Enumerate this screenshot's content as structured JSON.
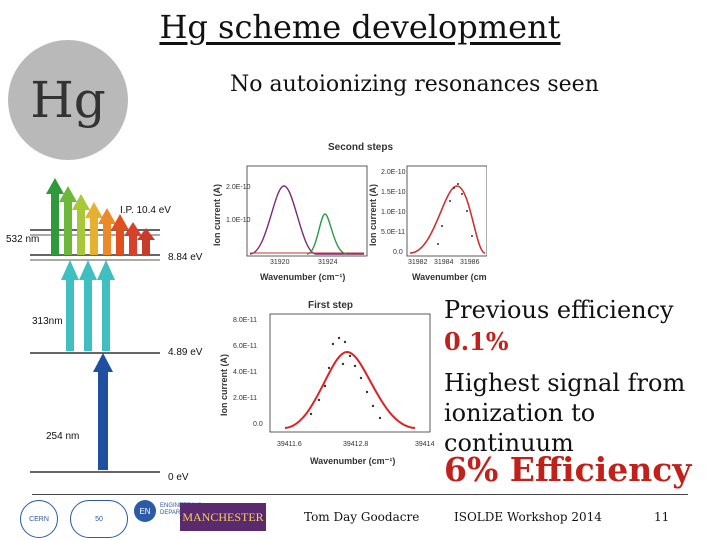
{
  "slide": {
    "title": "Hg scheme development",
    "subtitle": "No autoionizing resonances seen",
    "element_symbol": "Hg",
    "previous_efficiency_label": "Previous efficiency",
    "previous_efficiency_value": "0.1%",
    "highest_signal_line1": "Highest signal from",
    "highest_signal_line2": "ionization to continuum",
    "efficiency_headline": "6% Efficiency"
  },
  "level_scheme": {
    "levels": [
      "I.P. 10.4 eV",
      "8.84 eV",
      "4.89 eV",
      "0 eV"
    ],
    "wavelengths": [
      "532 nm",
      "313nm",
      "254 nm"
    ],
    "colors": {
      "uv": "#1e4fa0",
      "cyan": "#3fbfbf",
      "green": "#3aa83a",
      "red": "#e0501e"
    }
  },
  "plots": {
    "second_steps_title": "Second steps",
    "first_step_title": "First step",
    "ylabel": "Ion current (A)",
    "xlabel": "Wavenumber (cm⁻¹)",
    "second_left_yticks": [
      "2.0E-10",
      "1.0E-10"
    ],
    "second_left_xticks": [
      "31920",
      "31924"
    ],
    "second_right_yticks": [
      "2.0E-10",
      "1.5E-10",
      "1.0E-10",
      "5.0E-11",
      "0.0"
    ],
    "second_right_xticks": [
      "31982",
      "31984",
      "31986"
    ],
    "first_yticks": [
      "8.0E-11",
      "6.0E-11",
      "4.0E-11",
      "2.0E-11",
      "0.0"
    ],
    "first_xticks": [
      "39411.6",
      "39412.8",
      "39414"
    ]
  },
  "footer": {
    "author": "Tom Day Goodacre",
    "event": "ISOLDE Workshop 2014",
    "page": "11",
    "logo_cern": "CERN",
    "logo_50": "50",
    "logo_en": "EN",
    "logo_en_text": "ENGINEERING DEPARTMENT",
    "logo_man": "MANCHESTER"
  }
}
